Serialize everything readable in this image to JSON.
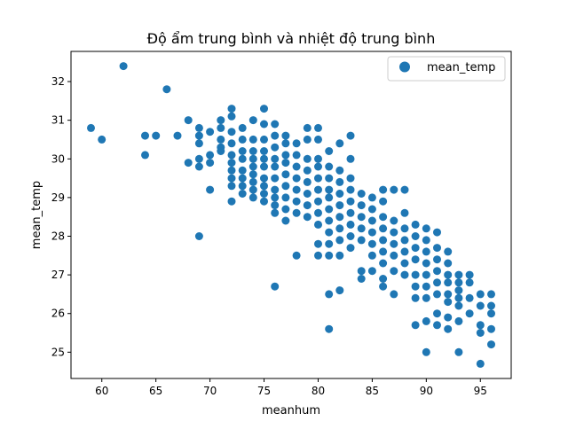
{
  "chart_data": {
    "type": "scatter",
    "title": "Độ ẩm trung bình và nhiệt độ trung bình",
    "xlabel": "meanhum",
    "ylabel": "mean_temp",
    "xlim": [
      57.15,
      97.85
    ],
    "ylim": [
      24.32,
      32.78
    ],
    "x_ticks": [
      60,
      65,
      70,
      75,
      80,
      85,
      90,
      95
    ],
    "y_ticks": [
      25,
      26,
      27,
      28,
      29,
      30,
      31,
      32
    ],
    "grid": false,
    "legend": {
      "position": "top-right",
      "entries": [
        "mean_temp"
      ]
    },
    "marker_color": "#1f77b4",
    "series": [
      {
        "name": "mean_temp",
        "points": [
          [
            59,
            30.8
          ],
          [
            60,
            30.5
          ],
          [
            62,
            32.4
          ],
          [
            64,
            30.6
          ],
          [
            64,
            30.1
          ],
          [
            65,
            30.6
          ],
          [
            66,
            31.8
          ],
          [
            67,
            30.6
          ],
          [
            68,
            31.0
          ],
          [
            68,
            29.9
          ],
          [
            69,
            30.8
          ],
          [
            69,
            30.6
          ],
          [
            69,
            30.4
          ],
          [
            69,
            30.0
          ],
          [
            69,
            29.8
          ],
          [
            69,
            28.0
          ],
          [
            70,
            30.7
          ],
          [
            70,
            30.1
          ],
          [
            70,
            29.9
          ],
          [
            70,
            29.2
          ],
          [
            71,
            31.0
          ],
          [
            71,
            30.8
          ],
          [
            71,
            30.5
          ],
          [
            71,
            30.3
          ],
          [
            71,
            30.2
          ],
          [
            72,
            31.3
          ],
          [
            72,
            31.1
          ],
          [
            72,
            30.7
          ],
          [
            72,
            30.4
          ],
          [
            72,
            30.1
          ],
          [
            72,
            29.9
          ],
          [
            72,
            29.7
          ],
          [
            72,
            29.5
          ],
          [
            72,
            29.3
          ],
          [
            72,
            28.9
          ],
          [
            73,
            30.8
          ],
          [
            73,
            30.5
          ],
          [
            73,
            30.2
          ],
          [
            73,
            30.0
          ],
          [
            73,
            29.7
          ],
          [
            73,
            29.5
          ],
          [
            73,
            29.3
          ],
          [
            73,
            29.1
          ],
          [
            74,
            31.0
          ],
          [
            74,
            30.5
          ],
          [
            74,
            30.2
          ],
          [
            74,
            30.0
          ],
          [
            74,
            29.8
          ],
          [
            74,
            29.6
          ],
          [
            74,
            29.4
          ],
          [
            74,
            29.2
          ],
          [
            74,
            29.0
          ],
          [
            75,
            31.3
          ],
          [
            75,
            30.9
          ],
          [
            75,
            30.5
          ],
          [
            75,
            30.2
          ],
          [
            75,
            30.0
          ],
          [
            75,
            29.8
          ],
          [
            75,
            29.5
          ],
          [
            75,
            29.3
          ],
          [
            75,
            29.1
          ],
          [
            75,
            28.9
          ],
          [
            76,
            30.9
          ],
          [
            76,
            30.6
          ],
          [
            76,
            30.3
          ],
          [
            76,
            30.0
          ],
          [
            76,
            29.8
          ],
          [
            76,
            29.5
          ],
          [
            76,
            29.2
          ],
          [
            76,
            29.0
          ],
          [
            76,
            28.8
          ],
          [
            76,
            28.6
          ],
          [
            76,
            26.7
          ],
          [
            77,
            30.6
          ],
          [
            77,
            30.4
          ],
          [
            77,
            30.1
          ],
          [
            77,
            29.9
          ],
          [
            77,
            29.6
          ],
          [
            77,
            29.3
          ],
          [
            77,
            29.0
          ],
          [
            77,
            28.7
          ],
          [
            77,
            28.4
          ],
          [
            78,
            30.4
          ],
          [
            78,
            30.1
          ],
          [
            78,
            29.8
          ],
          [
            78,
            29.5
          ],
          [
            78,
            29.2
          ],
          [
            78,
            28.9
          ],
          [
            78,
            28.6
          ],
          [
            78,
            27.5
          ],
          [
            79,
            30.8
          ],
          [
            79,
            30.5
          ],
          [
            79,
            30.0
          ],
          [
            79,
            29.7
          ],
          [
            79,
            29.4
          ],
          [
            79,
            29.1
          ],
          [
            79,
            28.8
          ],
          [
            79,
            28.5
          ],
          [
            80,
            30.8
          ],
          [
            80,
            30.5
          ],
          [
            80,
            30.0
          ],
          [
            80,
            29.8
          ],
          [
            80,
            29.5
          ],
          [
            80,
            29.2
          ],
          [
            80,
            28.9
          ],
          [
            80,
            28.6
          ],
          [
            80,
            28.3
          ],
          [
            80,
            27.8
          ],
          [
            80,
            27.5
          ],
          [
            81,
            30.2
          ],
          [
            81,
            29.8
          ],
          [
            81,
            29.5
          ],
          [
            81,
            29.2
          ],
          [
            81,
            29.0
          ],
          [
            81,
            28.7
          ],
          [
            81,
            28.4
          ],
          [
            81,
            28.1
          ],
          [
            81,
            27.8
          ],
          [
            81,
            27.5
          ],
          [
            81,
            26.5
          ],
          [
            81,
            25.6
          ],
          [
            82,
            30.4
          ],
          [
            82,
            29.7
          ],
          [
            82,
            29.4
          ],
          [
            82,
            29.1
          ],
          [
            82,
            28.8
          ],
          [
            82,
            28.5
          ],
          [
            82,
            28.2
          ],
          [
            82,
            27.9
          ],
          [
            82,
            27.5
          ],
          [
            82,
            26.6
          ],
          [
            83,
            30.6
          ],
          [
            83,
            30.0
          ],
          [
            83,
            29.5
          ],
          [
            83,
            29.2
          ],
          [
            83,
            28.9
          ],
          [
            83,
            28.6
          ],
          [
            83,
            28.3
          ],
          [
            83,
            28.0
          ],
          [
            83,
            27.7
          ],
          [
            84,
            29.1
          ],
          [
            84,
            28.8
          ],
          [
            84,
            28.5
          ],
          [
            84,
            28.2
          ],
          [
            84,
            27.9
          ],
          [
            84,
            27.1
          ],
          [
            84,
            26.9
          ],
          [
            85,
            29.0
          ],
          [
            85,
            28.7
          ],
          [
            85,
            28.4
          ],
          [
            85,
            28.1
          ],
          [
            85,
            27.8
          ],
          [
            85,
            27.5
          ],
          [
            85,
            27.1
          ],
          [
            86,
            29.2
          ],
          [
            86,
            28.9
          ],
          [
            86,
            28.5
          ],
          [
            86,
            28.2
          ],
          [
            86,
            27.9
          ],
          [
            86,
            27.6
          ],
          [
            86,
            27.3
          ],
          [
            86,
            26.9
          ],
          [
            86,
            26.7
          ],
          [
            87,
            29.2
          ],
          [
            87,
            28.4
          ],
          [
            87,
            28.1
          ],
          [
            87,
            27.8
          ],
          [
            87,
            27.5
          ],
          [
            87,
            27.1
          ],
          [
            87,
            26.5
          ],
          [
            88,
            29.2
          ],
          [
            88,
            28.6
          ],
          [
            88,
            28.2
          ],
          [
            88,
            27.9
          ],
          [
            88,
            27.6
          ],
          [
            88,
            27.3
          ],
          [
            88,
            27.0
          ],
          [
            89,
            28.3
          ],
          [
            89,
            28.0
          ],
          [
            89,
            27.7
          ],
          [
            89,
            27.4
          ],
          [
            89,
            27.0
          ],
          [
            89,
            26.7
          ],
          [
            89,
            26.4
          ],
          [
            89,
            25.7
          ],
          [
            90,
            28.2
          ],
          [
            90,
            27.9
          ],
          [
            90,
            27.6
          ],
          [
            90,
            27.3
          ],
          [
            90,
            27.0
          ],
          [
            90,
            26.7
          ],
          [
            90,
            26.4
          ],
          [
            90,
            25.8
          ],
          [
            90,
            25.0
          ],
          [
            91,
            28.1
          ],
          [
            91,
            27.7
          ],
          [
            91,
            27.4
          ],
          [
            91,
            27.1
          ],
          [
            91,
            26.8
          ],
          [
            91,
            26.5
          ],
          [
            91,
            26.0
          ],
          [
            91,
            25.7
          ],
          [
            92,
            27.6
          ],
          [
            92,
            27.3
          ],
          [
            92,
            27.0
          ],
          [
            92,
            26.8
          ],
          [
            92,
            26.5
          ],
          [
            92,
            26.3
          ],
          [
            92,
            25.9
          ],
          [
            92,
            25.6
          ],
          [
            93,
            27.0
          ],
          [
            93,
            26.8
          ],
          [
            93,
            26.6
          ],
          [
            93,
            26.4
          ],
          [
            93,
            26.2
          ],
          [
            93,
            25.8
          ],
          [
            93,
            25.0
          ],
          [
            94,
            27.0
          ],
          [
            94,
            26.8
          ],
          [
            94,
            26.4
          ],
          [
            94,
            26.0
          ],
          [
            95,
            26.5
          ],
          [
            95,
            26.2
          ],
          [
            95,
            25.7
          ],
          [
            95,
            25.5
          ],
          [
            95,
            24.7
          ],
          [
            96,
            26.5
          ],
          [
            96,
            26.2
          ],
          [
            96,
            26.0
          ],
          [
            96,
            25.6
          ],
          [
            96,
            25.2
          ]
        ]
      }
    ]
  }
}
